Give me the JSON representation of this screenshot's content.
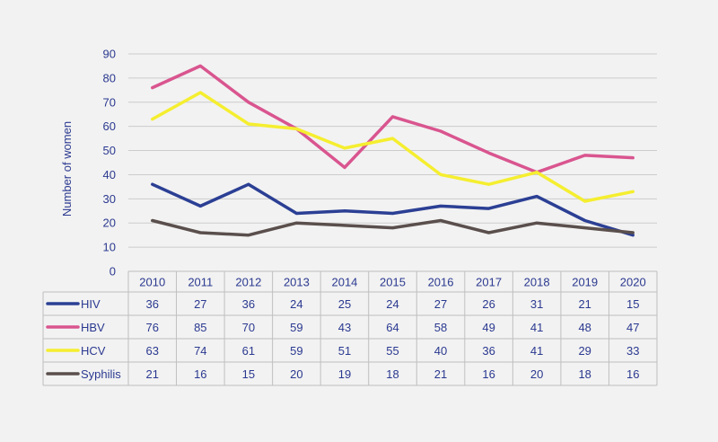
{
  "chart_data": {
    "type": "line",
    "title": "",
    "xlabel": "",
    "ylabel": "Number of women",
    "ylim": [
      0,
      90
    ],
    "yticks": [
      0,
      10,
      20,
      30,
      40,
      50,
      60,
      70,
      80,
      90
    ],
    "grid": true,
    "legend": "data-table-below",
    "categories": [
      "2010",
      "2011",
      "2012",
      "2013",
      "2014",
      "2015",
      "2016",
      "2017",
      "2018",
      "2019",
      "2020"
    ],
    "series": [
      {
        "name": "HIV",
        "color": "#2b3f94",
        "values": [
          36,
          27,
          36,
          24,
          25,
          24,
          27,
          26,
          31,
          21,
          15
        ]
      },
      {
        "name": "HBV",
        "color": "#d9558f",
        "values": [
          76,
          85,
          70,
          59,
          43,
          64,
          58,
          49,
          41,
          48,
          47
        ]
      },
      {
        "name": "HCV",
        "color": "#f5ee2f",
        "values": [
          63,
          74,
          61,
          59,
          51,
          55,
          40,
          36,
          41,
          29,
          33
        ]
      },
      {
        "name": "Syphilis",
        "color": "#5a4f4c",
        "values": [
          21,
          16,
          15,
          20,
          19,
          18,
          21,
          16,
          20,
          18,
          16
        ]
      }
    ]
  }
}
